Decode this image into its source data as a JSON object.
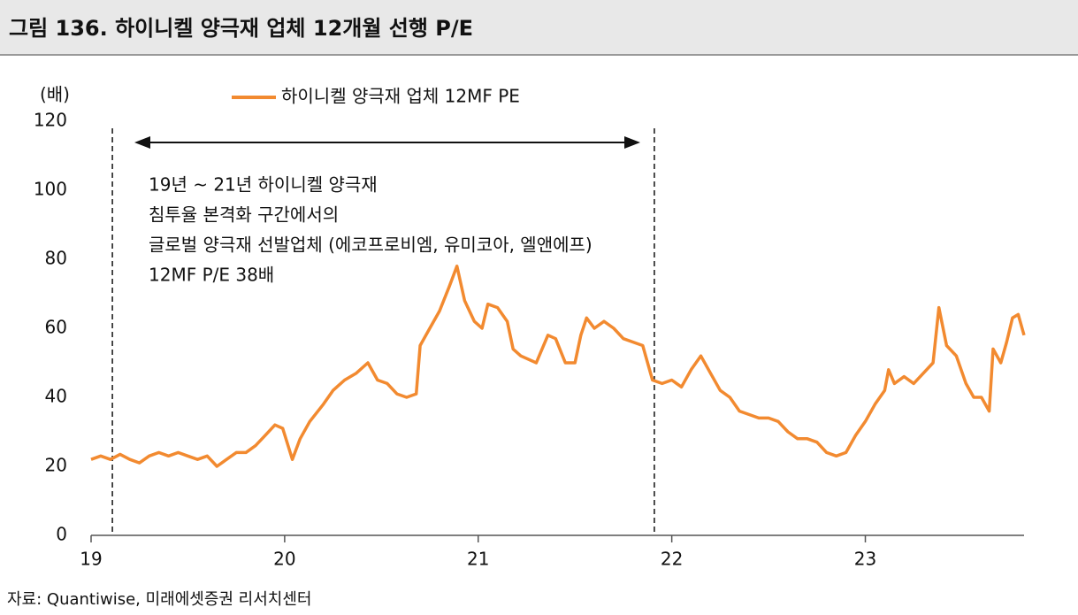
{
  "chart_data": {
    "type": "line",
    "title": "그림 136. 하이니켈 양극재 업체 12개월 선행 P/E",
    "y_unit": "(배)",
    "annotation": [
      "19년 ~ 21년 하이니켈 양극재",
      "침투율 본격화 구간에서의",
      "글로벌 양극재 선발업체 (에코프로비엠, 유미코아, 엘앤에프)",
      "12MF P/E 38배"
    ],
    "source": "자료: Quantiwise, 미래에셋증권 리서치센터",
    "reference_lines": [
      2019.11,
      2021.91
    ],
    "xlim": [
      2019,
      2023.82
    ],
    "xticks": [
      {
        "value": 2019,
        "label": "19"
      },
      {
        "value": 2020,
        "label": "20"
      },
      {
        "value": 2021,
        "label": "21"
      },
      {
        "value": 2022,
        "label": "22"
      },
      {
        "value": 2023,
        "label": "23"
      }
    ],
    "ylim": [
      0,
      120
    ],
    "yticks": [
      0,
      20,
      40,
      60,
      80,
      100,
      120
    ],
    "x": [
      2019.0,
      2019.05,
      2019.1,
      2019.15,
      2019.2,
      2019.25,
      2019.3,
      2019.35,
      2019.4,
      2019.45,
      2019.5,
      2019.55,
      2019.6,
      2019.65,
      2019.7,
      2019.75,
      2019.8,
      2019.85,
      2019.9,
      2019.95,
      2019.99,
      2020.04,
      2020.08,
      2020.13,
      2020.2,
      2020.25,
      2020.31,
      2020.37,
      2020.43,
      2020.48,
      2020.53,
      2020.58,
      2020.63,
      2020.68,
      2020.7,
      2020.75,
      2020.8,
      2020.85,
      2020.89,
      2020.93,
      2020.98,
      2021.02,
      2021.05,
      2021.1,
      2021.15,
      2021.18,
      2021.22,
      2021.3,
      2021.36,
      2021.4,
      2021.45,
      2021.5,
      2021.53,
      2021.56,
      2021.6,
      2021.65,
      2021.7,
      2021.75,
      2021.8,
      2021.85,
      2021.9,
      2021.95,
      2022.0,
      2022.05,
      2022.1,
      2022.15,
      2022.2,
      2022.25,
      2022.3,
      2022.35,
      2022.4,
      2022.45,
      2022.5,
      2022.55,
      2022.6,
      2022.65,
      2022.7,
      2022.75,
      2022.8,
      2022.85,
      2022.9,
      2022.95,
      2023.0,
      2023.05,
      2023.1,
      2023.12,
      2023.15,
      2023.2,
      2023.25,
      2023.3,
      2023.35,
      2023.38,
      2023.42,
      2023.47,
      2023.52,
      2023.56,
      2023.6,
      2023.64,
      2023.66,
      2023.7,
      2023.73,
      2023.76,
      2023.79,
      2023.82
    ],
    "series": [
      {
        "name": "하이니켈 양극재 업체 12MF PE",
        "color": "#f28a30",
        "values": [
          22,
          23,
          22,
          23.5,
          22,
          21,
          23,
          24,
          23,
          24,
          23,
          22,
          23,
          20,
          22,
          24,
          24,
          26,
          29,
          32,
          31,
          22,
          28,
          33,
          38,
          42,
          45,
          47,
          50,
          45,
          44,
          41,
          40,
          41,
          55,
          60,
          65,
          72,
          78,
          68,
          62,
          60,
          67,
          66,
          62,
          54,
          52,
          50,
          58,
          57,
          50,
          50,
          58,
          63,
          60,
          62,
          60,
          57,
          56,
          55,
          45,
          44,
          45,
          43,
          48,
          52,
          47,
          42,
          40,
          36,
          35,
          34,
          34,
          33,
          30,
          28,
          28,
          27,
          24,
          23,
          24,
          29,
          33,
          38,
          42,
          48,
          44,
          46,
          44,
          47,
          50,
          66,
          55,
          52,
          44,
          40,
          40,
          36,
          54,
          50,
          56,
          63,
          64,
          58
        ]
      }
    ]
  }
}
